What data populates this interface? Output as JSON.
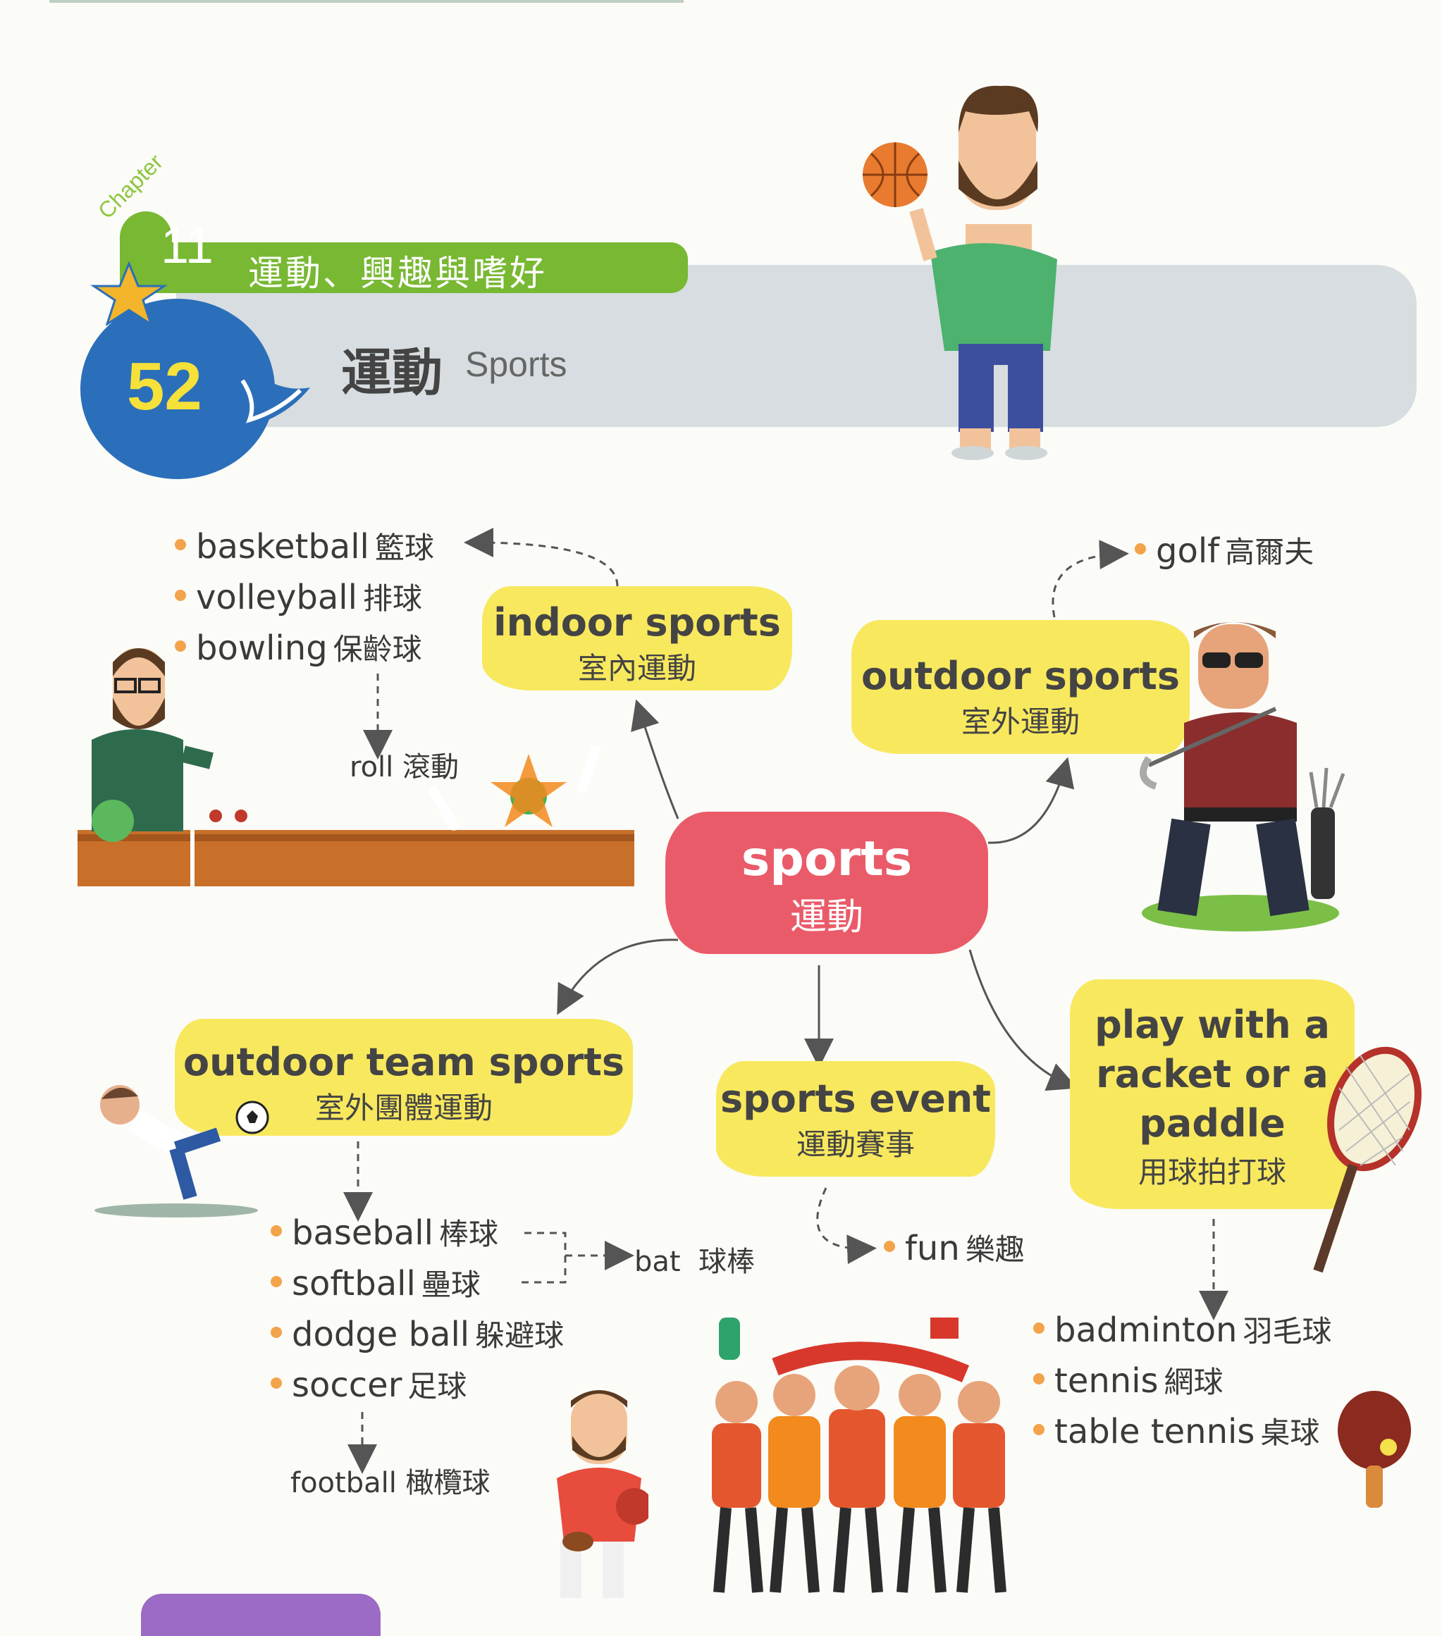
{
  "header": {
    "chapter_word": "Chapter",
    "chapter_number": "11",
    "chapter_title": "運動、興趣與嗜好",
    "unit_number": "52",
    "unit_title_zh": "運動",
    "unit_title_en": "Sports"
  },
  "center": {
    "en": "sports",
    "zh": "運動"
  },
  "indoor": {
    "en": "indoor sports",
    "zh": "室內運動",
    "items": [
      {
        "en": "basketball",
        "zh": "籃球"
      },
      {
        "en": "volleyball",
        "zh": "排球"
      },
      {
        "en": "bowling",
        "zh": "保齡球"
      }
    ],
    "sub": {
      "en": "roll",
      "zh": "滾動"
    }
  },
  "outdoor": {
    "en": "outdoor sports",
    "zh": "室外運動",
    "items": [
      {
        "en": "golf",
        "zh": "高爾夫"
      }
    ]
  },
  "team": {
    "en": "outdoor team sports",
    "zh": "室外團體運動",
    "items": [
      {
        "en": "baseball",
        "zh": "棒球"
      },
      {
        "en": "softball",
        "zh": "壘球"
      },
      {
        "en": "dodge ball",
        "zh": "躲避球"
      },
      {
        "en": "soccer",
        "zh": "足球"
      }
    ],
    "bat": {
      "en": "bat",
      "zh": "球棒"
    },
    "sub": {
      "en": "football",
      "zh": "橄欖球"
    }
  },
  "event": {
    "en": "sports event",
    "zh": "運動賽事",
    "items": [
      {
        "en": "fun",
        "zh": "樂趣"
      }
    ]
  },
  "racket": {
    "en_lines": [
      "play with a",
      "racket or a",
      "paddle"
    ],
    "zh": "用球拍打球",
    "items": [
      {
        "en": "badminton",
        "zh": "羽毛球"
      },
      {
        "en": "tennis",
        "zh": "網球"
      },
      {
        "en": "table tennis",
        "zh": "桌球"
      }
    ]
  },
  "colors": {
    "green": "#78b833",
    "blue": "#2b6fba",
    "yellow": "#f8e85e",
    "pink": "#ea5b6a",
    "orange_dot": "#f3a34a",
    "grey_banner": "#d7dde0"
  }
}
